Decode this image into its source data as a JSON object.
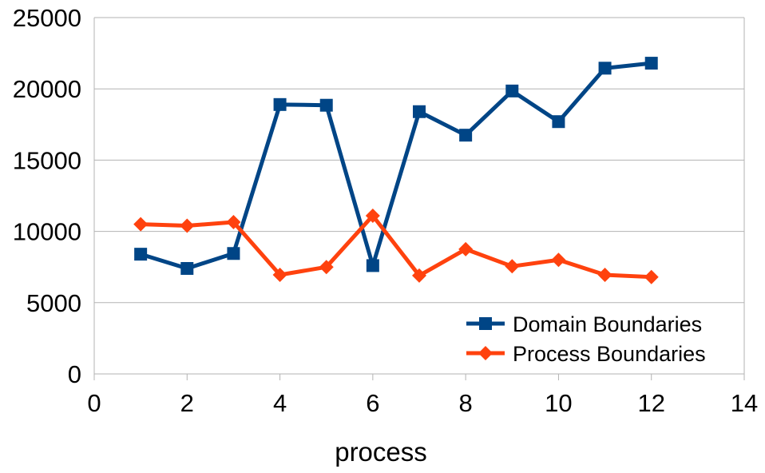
{
  "chart_data": {
    "type": "line",
    "xlabel": "process",
    "ylabel": "",
    "xlim": [
      0,
      14
    ],
    "ylim": [
      0,
      25000
    ],
    "x_ticks": [
      "0",
      "2",
      "4",
      "6",
      "8",
      "10",
      "12",
      "14"
    ],
    "y_ticks": [
      "0",
      "5000",
      "10000",
      "15000",
      "20000",
      "25000"
    ],
    "grid": "horizontal",
    "legend_position": "bottom-right",
    "x": [
      1,
      2,
      3,
      4,
      5,
      6,
      7,
      8,
      9,
      10,
      11,
      12
    ],
    "series": [
      {
        "name": "Domain Boundaries",
        "color": "#004586",
        "marker": "square",
        "values": [
          8400,
          7400,
          8450,
          18900,
          18850,
          7600,
          18400,
          16750,
          19850,
          17700,
          21450,
          21800
        ]
      },
      {
        "name": "Process Boundaries",
        "color": "#ff420e",
        "marker": "diamond",
        "values": [
          10500,
          10400,
          10650,
          6950,
          7500,
          11100,
          6900,
          8750,
          7550,
          8000,
          6950,
          6800
        ]
      }
    ]
  }
}
